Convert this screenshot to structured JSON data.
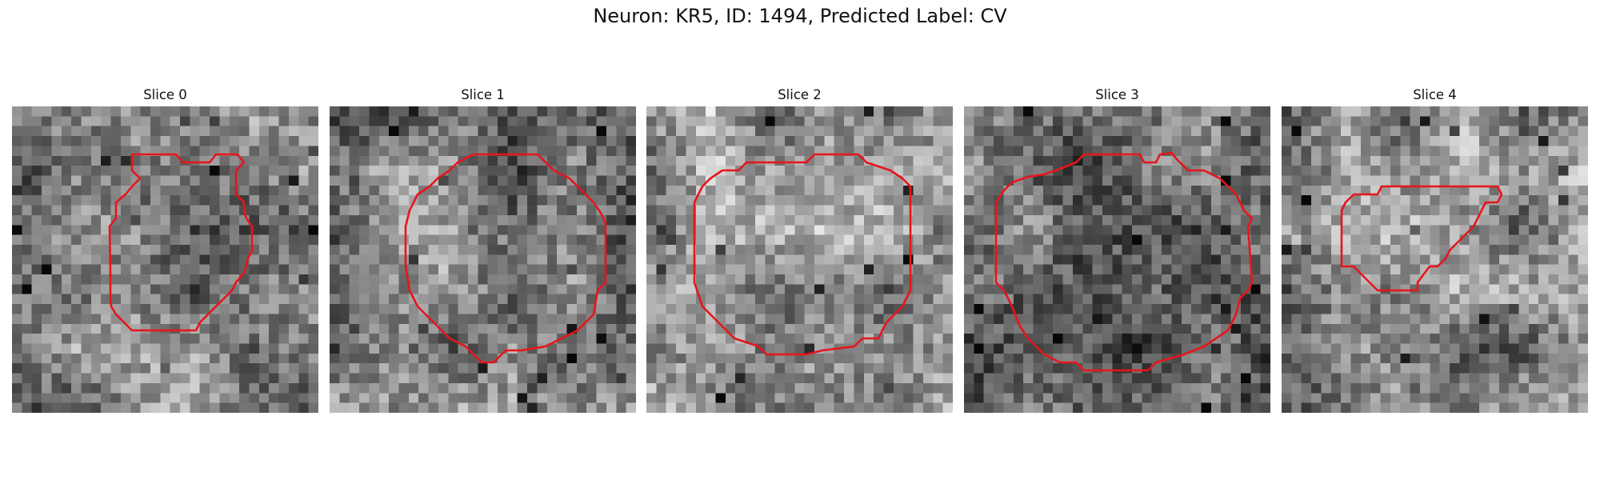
{
  "figure": {
    "title": "Neuron: KR5, ID: 1494, Predicted Label: CV"
  },
  "panels": [
    {
      "title": "Slice 0"
    },
    {
      "title": "Slice 1"
    },
    {
      "title": "Slice 2"
    },
    {
      "title": "Slice 3"
    },
    {
      "title": "Slice 4"
    }
  ],
  "colors": {
    "outline": "#e8141b",
    "colormap": "gray"
  }
}
